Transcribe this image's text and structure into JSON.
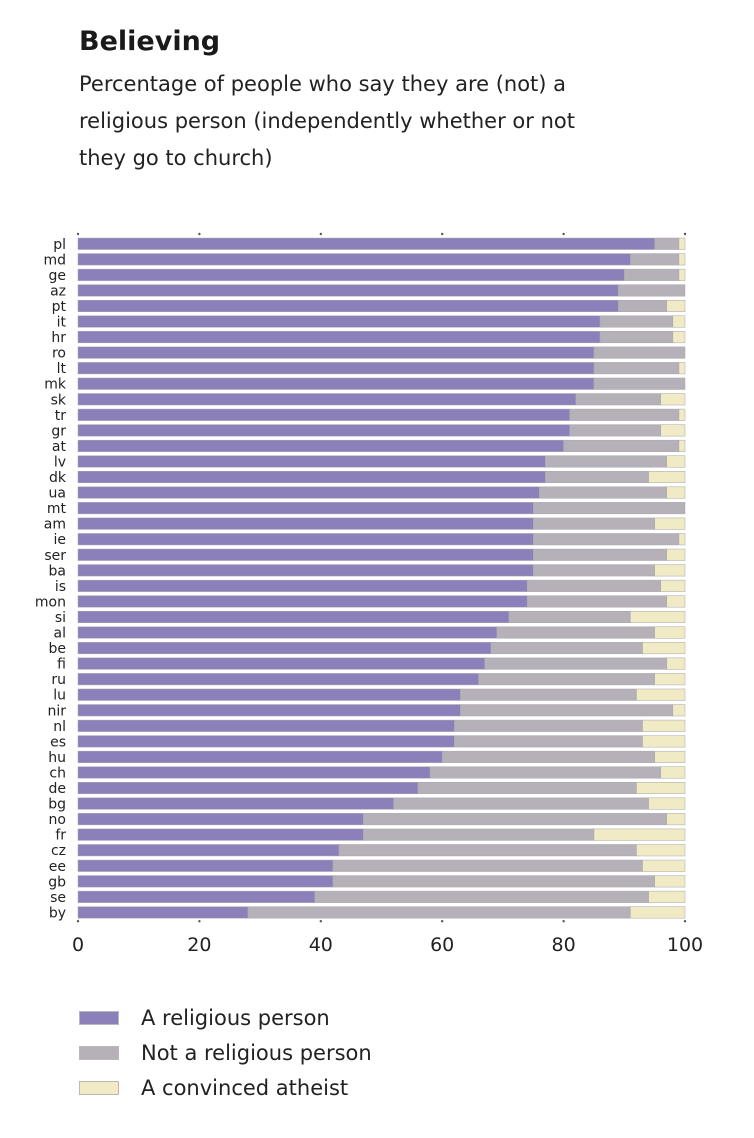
{
  "chart_data": {
    "type": "bar",
    "orientation": "horizontal",
    "stacked": true,
    "title": "Believing",
    "subtitle": "Percentage of people who say they are (not) a religious person (independently whether or not they go to church)",
    "xlim": [
      0,
      100
    ],
    "xticks": [
      "0",
      "20",
      "40",
      "60",
      "80",
      "100"
    ],
    "categories": [
      "pl",
      "md",
      "ge",
      "az",
      "pt",
      "it",
      "hr",
      "ro",
      "lt",
      "mk",
      "sk",
      "tr",
      "gr",
      "at",
      "lv",
      "dk",
      "ua",
      "mt",
      "am",
      "ie",
      "ser",
      "ba",
      "is",
      "mon",
      "si",
      "al",
      "be",
      "fi",
      "ru",
      "lu",
      "nir",
      "nl",
      "es",
      "hu",
      "ch",
      "de",
      "bg",
      "no",
      "fr",
      "cz",
      "ee",
      "gb",
      "se",
      "by"
    ],
    "series": [
      {
        "name": "A religious person",
        "color": "#8b80b9",
        "values": [
          95,
          91,
          90,
          89,
          89,
          86,
          86,
          85,
          85,
          85,
          82,
          81,
          81,
          80,
          77,
          77,
          76,
          75,
          75,
          75,
          75,
          75,
          74,
          74,
          71,
          69,
          68,
          67,
          66,
          63,
          63,
          62,
          62,
          60,
          58,
          56,
          52,
          47,
          47,
          43,
          42,
          42,
          39,
          28
        ]
      },
      {
        "name": "Not a religious person",
        "color": "#b6b1b9",
        "values": [
          4,
          8,
          9,
          11,
          8,
          12,
          12,
          15,
          14,
          15,
          14,
          18,
          15,
          19,
          20,
          17,
          21,
          25,
          20,
          24,
          22,
          20,
          22,
          23,
          20,
          26,
          25,
          30,
          29,
          29,
          35,
          31,
          31,
          35,
          38,
          36,
          42,
          50,
          38,
          49,
          51,
          53,
          55,
          63
        ]
      },
      {
        "name": "A convinced atheist",
        "color": "#f0ebc4",
        "values": [
          1,
          1,
          1,
          0,
          3,
          2,
          2,
          0,
          1,
          0,
          4,
          1,
          4,
          1,
          3,
          6,
          3,
          0,
          5,
          1,
          3,
          5,
          4,
          3,
          9,
          5,
          7,
          3,
          5,
          8,
          2,
          7,
          7,
          5,
          4,
          8,
          6,
          3,
          15,
          8,
          7,
          5,
          6,
          9
        ]
      }
    ]
  }
}
